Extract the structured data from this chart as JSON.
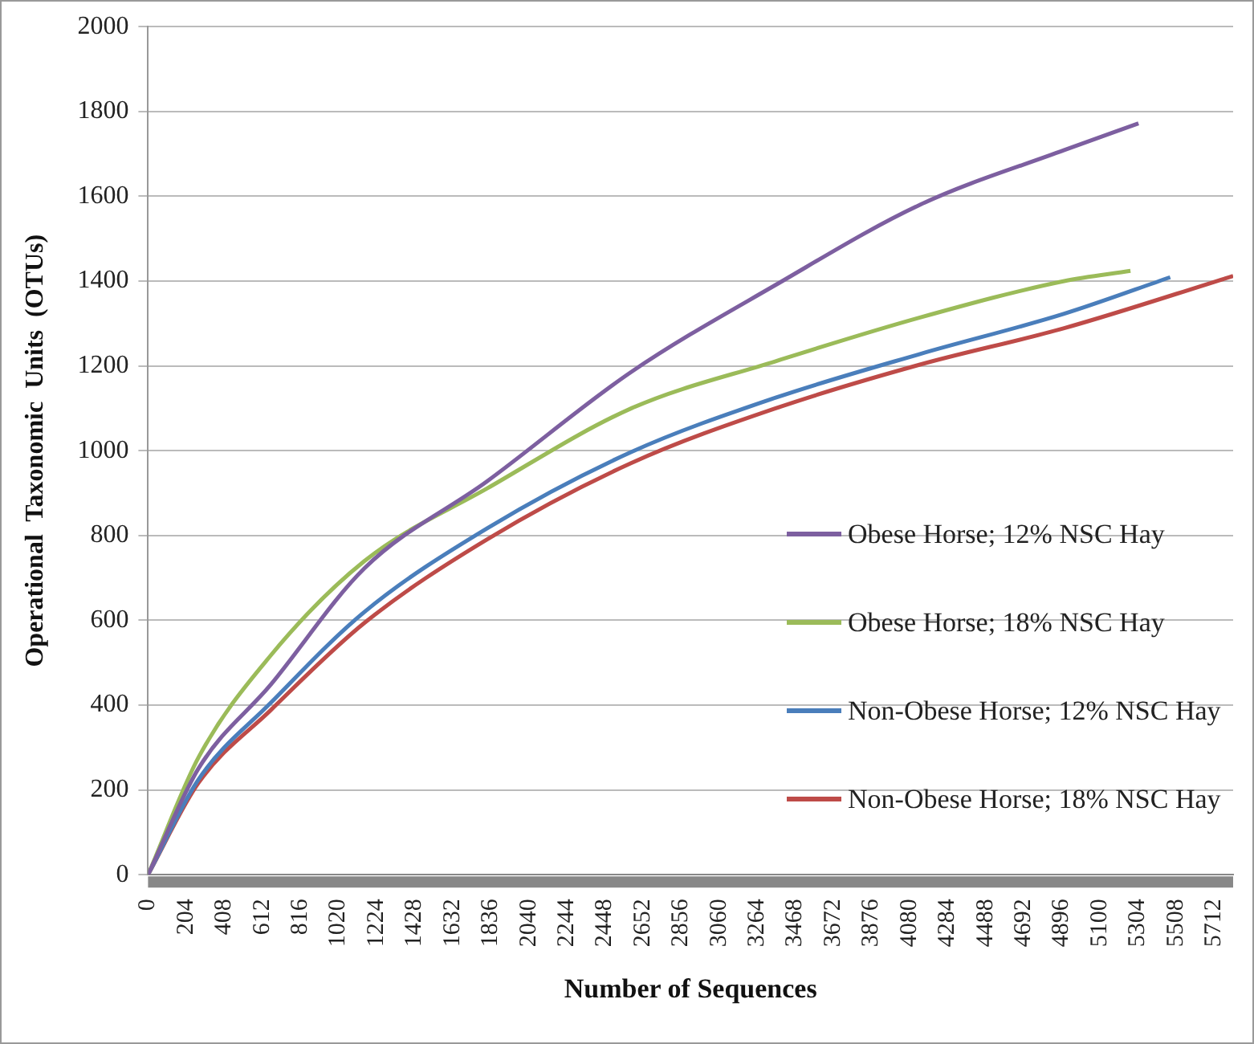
{
  "chart_data": {
    "type": "line",
    "xlabel": "Number of Sequences",
    "ylabel": "Operational  Taxonomic  Units  (OTUs)",
    "xlim": [
      0,
      5814
    ],
    "xticks": [
      0,
      204,
      408,
      612,
      816,
      1020,
      1224,
      1428,
      1632,
      1836,
      2040,
      2244,
      2448,
      2652,
      2856,
      3060,
      3264,
      3468,
      3672,
      3876,
      4080,
      4284,
      4488,
      4692,
      4896,
      5100,
      5304,
      5508,
      5712
    ],
    "ylim": [
      0,
      2000
    ],
    "yticks": [
      0,
      200,
      400,
      600,
      800,
      1000,
      1200,
      1400,
      1600,
      1800,
      2000
    ],
    "grid": "y",
    "legend": "right",
    "marker": "none",
    "line_style": "solid",
    "series": [
      {
        "name": "Obese Horse; 12% NSC Hay",
        "color": "#7d5fa0",
        "x": [
          0,
          271,
          657,
          1160,
          1817,
          2590,
          3363,
          4136,
          4909,
          5307
        ],
        "values": [
          0,
          251,
          448,
          723,
          928,
          1186,
          1391,
          1580,
          1709,
          1772
        ]
      },
      {
        "name": "Obese Horse; 18% NSC Hay",
        "color": "#9bbb59",
        "x": [
          0,
          271,
          657,
          1160,
          1817,
          2590,
          3363,
          4136,
          4909,
          5264
        ],
        "values": [
          0,
          277,
          517,
          740,
          911,
          1100,
          1211,
          1314,
          1400,
          1424
        ]
      },
      {
        "name": "Non-Obese Horse; 12% NSC Hay",
        "color": "#4a7ebb",
        "x": [
          0,
          271,
          657,
          1160,
          1817,
          2590,
          3363,
          4136,
          4909,
          5477
        ],
        "values": [
          0,
          225,
          405,
          620,
          817,
          997,
          1125,
          1228,
          1323,
          1409
        ]
      },
      {
        "name": "Non-Obese Horse; 18% NSC Hay",
        "color": "#be4b48",
        "x": [
          0,
          271,
          657,
          1160,
          1817,
          2590,
          3363,
          4136,
          4909,
          5814
        ],
        "values": [
          0,
          217,
          388,
          594,
          791,
          971,
          1100,
          1203,
          1289,
          1412
        ]
      }
    ]
  }
}
